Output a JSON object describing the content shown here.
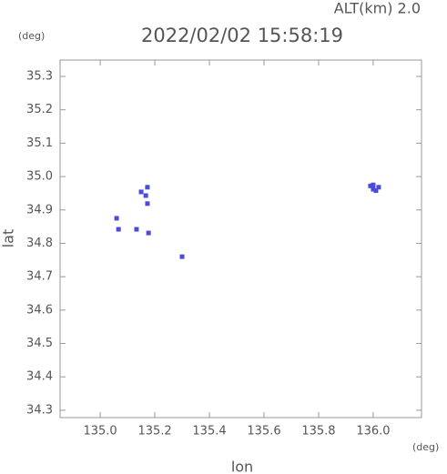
{
  "chart_data": {
    "type": "scatter",
    "title": "2022/02/02 15:58:19",
    "subtitle": "ALT(km) 2.0",
    "y_unit": "(deg)",
    "x_unit": "(deg)",
    "xlabel": "lon",
    "ylabel": "lat",
    "series": [
      {
        "color": "#4b4bdc",
        "x": [
          135.06,
          135.067,
          135.15,
          135.167,
          135.173,
          135.173,
          135.133,
          135.177,
          135.3,
          135.99,
          136.0,
          136.02,
          136.0,
          136.01
        ],
        "y": [
          34.875,
          34.842,
          34.954,
          34.943,
          34.968,
          34.919,
          34.842,
          34.831,
          34.76,
          34.972,
          34.962,
          34.968,
          34.975,
          34.958
        ]
      }
    ],
    "xlim": [
      134.853,
      136.177
    ],
    "ylim": [
      34.278,
      35.349
    ],
    "xticks": [
      {
        "value": 135,
        "label": "135.0"
      },
      135.2,
      135.4,
      135.6,
      135.8,
      {
        "value": 136,
        "label": "136.0"
      }
    ],
    "yticks": [
      35.3,
      35.2,
      35.1,
      {
        "value": 35,
        "label": "35.0"
      },
      34.9,
      34.8,
      34.7,
      34.6,
      34.5,
      34.4,
      34.3
    ]
  }
}
